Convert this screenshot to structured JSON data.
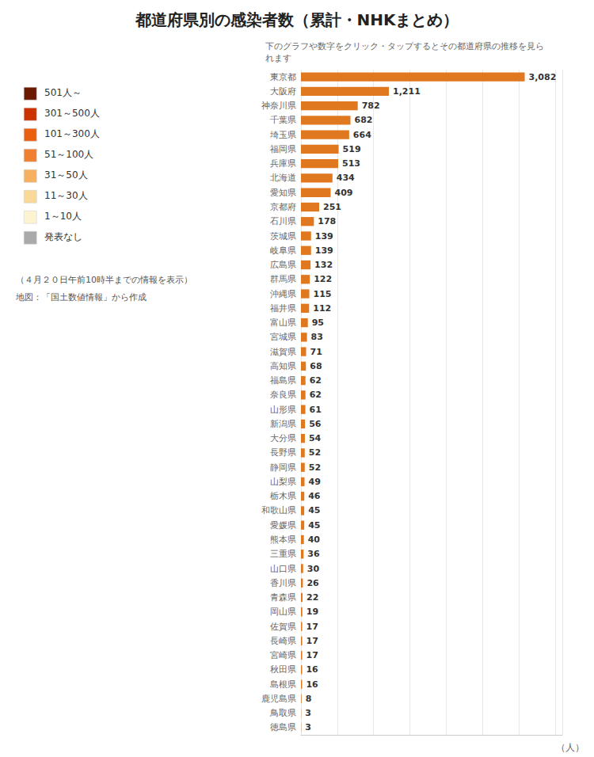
{
  "chart_data": {
    "type": "bar",
    "orientation": "horizontal",
    "title": "都道府県別の感染者数（累計・NHKまとめ）",
    "subtitle": "下のグラフや数字をクリック・タップするとその都道府県の推移を見ら\nれます",
    "categories": [
      "東京都",
      "大阪府",
      "神奈川県",
      "千葉県",
      "埼玉県",
      "福岡県",
      "兵庫県",
      "北海道",
      "愛知県",
      "京都府",
      "石川県",
      "茨城県",
      "岐阜県",
      "広島県",
      "群馬県",
      "沖縄県",
      "福井県",
      "富山県",
      "宮城県",
      "滋賀県",
      "高知県",
      "福島県",
      "奈良県",
      "山形県",
      "新潟県",
      "大分県",
      "長野県",
      "静岡県",
      "山梨県",
      "栃木県",
      "和歌山県",
      "愛媛県",
      "熊本県",
      "三重県",
      "山口県",
      "香川県",
      "青森県",
      "岡山県",
      "佐賀県",
      "長崎県",
      "宮崎県",
      "秋田県",
      "島根県",
      "鹿児島県",
      "鳥取県",
      "徳島県"
    ],
    "values": [
      3082,
      1211,
      782,
      682,
      664,
      519,
      513,
      434,
      409,
      251,
      178,
      139,
      139,
      132,
      122,
      115,
      112,
      95,
      83,
      71,
      68,
      62,
      62,
      61,
      56,
      54,
      52,
      52,
      49,
      46,
      45,
      45,
      40,
      36,
      30,
      26,
      22,
      19,
      17,
      17,
      17,
      16,
      16,
      8,
      3,
      3
    ],
    "value_labels": [
      "3,082",
      "1,211",
      "782",
      "682",
      "664",
      "519",
      "513",
      "434",
      "409",
      "251",
      "178",
      "139",
      "139",
      "132",
      "122",
      "115",
      "112",
      "95",
      "83",
      "71",
      "68",
      "62",
      "62",
      "61",
      "56",
      "54",
      "52",
      "52",
      "49",
      "46",
      "45",
      "45",
      "40",
      "36",
      "30",
      "26",
      "22",
      "19",
      "17",
      "17",
      "17",
      "16",
      "16",
      "8",
      "3",
      "3"
    ],
    "data_labels": true,
    "color": "#E07820",
    "xlim": [
      0,
      3600
    ],
    "xticks": [
      0,
      500,
      1000,
      1500,
      2000,
      2500,
      3000,
      3500
    ],
    "tick_labels": "y",
    "grid": true,
    "annotations": [
      {
        "text": "501人～",
        "color": "#6B1A00"
      },
      {
        "text": "301～500人",
        "color": "#CC3300"
      },
      {
        "text": "101～300人",
        "color": "#E86010"
      },
      {
        "text": "51～100人",
        "color": "#F08030"
      },
      {
        "text": "31～50人",
        "color": "#F5B060"
      },
      {
        "text": "11～30人",
        "color": "#F9D898"
      },
      {
        "text": "1～10人",
        "color": "#FDF3D0"
      },
      {
        "text": "発表なし",
        "color": "#AAAAAA"
      },
      {
        "text": "（４月２０日午前10時半までの情報を表示）"
      },
      {
        "text": "地図：「国土数値情報」から作成"
      },
      {
        "text": "（人）"
      }
    ]
  }
}
